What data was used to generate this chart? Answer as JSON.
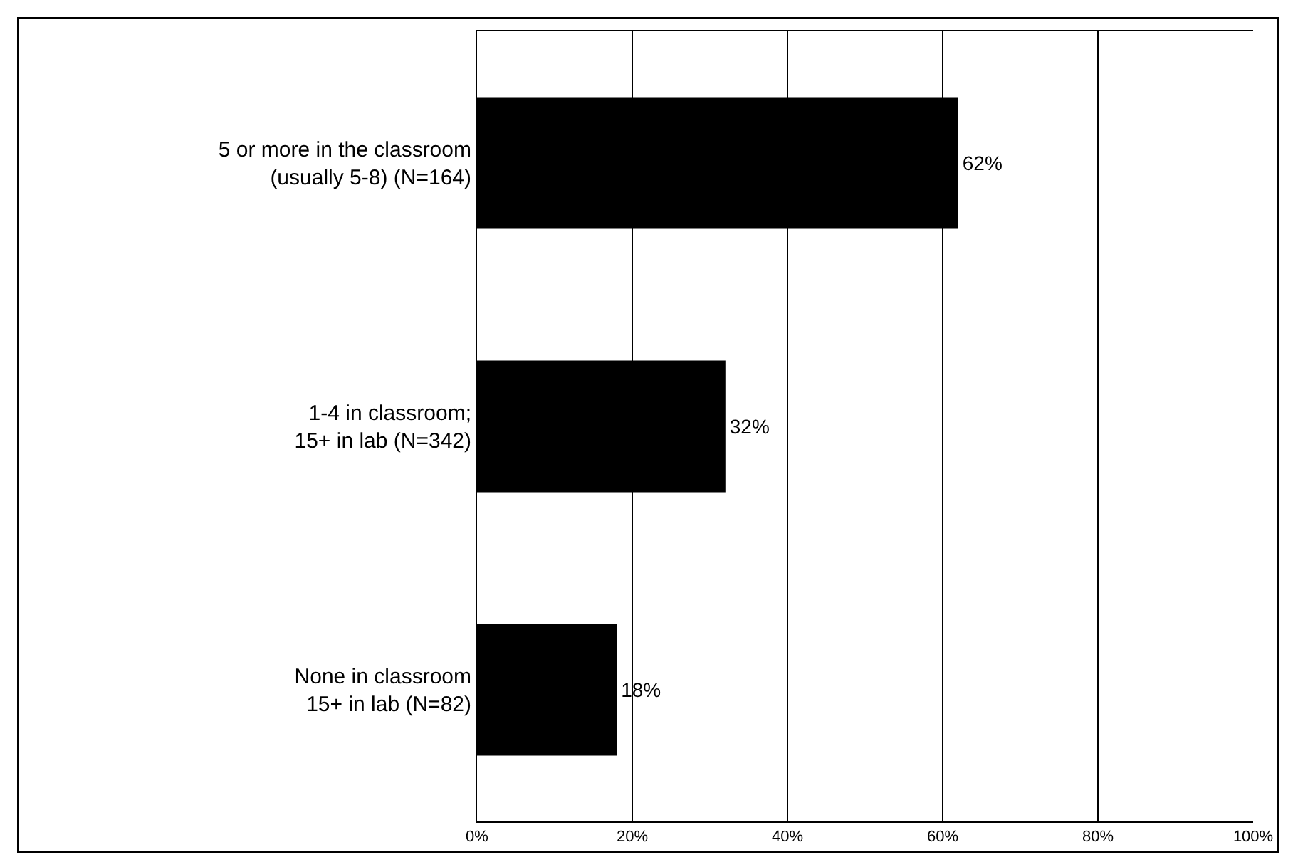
{
  "chart_data": {
    "type": "bar",
    "orientation": "horizontal",
    "categories": [
      "5 or more in the classroom\n(usually 5-8) (N=164)",
      "1-4 in classroom;\n15+ in lab (N=342)",
      "None in classroom\n15+ in lab (N=82)"
    ],
    "values": [
      62,
      32,
      18
    ],
    "color": "#000000",
    "value_labels": [
      "62%",
      "32%",
      "18%"
    ],
    "xlim": [
      0,
      100
    ],
    "xticks": [
      {
        "value": 0,
        "label": "0%"
      },
      {
        "value": 20,
        "label": "20%"
      },
      {
        "value": 40,
        "label": "40%"
      },
      {
        "value": 60,
        "label": "60%"
      },
      {
        "value": 80,
        "label": "80%"
      },
      {
        "value": 100,
        "label": "100%"
      }
    ],
    "grid": "x"
  }
}
